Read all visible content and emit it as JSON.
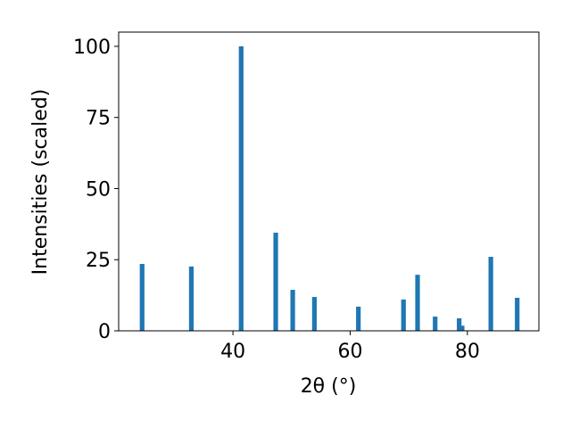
{
  "chart_data": {
    "type": "bar",
    "x": [
      24.5,
      32.9,
      41.4,
      47.3,
      50.2,
      53.9,
      61.4,
      69.1,
      71.5,
      74.5,
      78.6,
      79.1,
      84.0,
      88.5
    ],
    "values": [
      23.5,
      22.6,
      100,
      34.5,
      14.4,
      11.9,
      8.5,
      11.0,
      19.7,
      5.0,
      4.4,
      1.8,
      26.0,
      11.6
    ],
    "color": "#1f77b4",
    "xlabel": "2θ (°)",
    "ylabel": "Intensities (scaled)",
    "xlim": [
      20.5,
      92.2
    ],
    "ylim": [
      0,
      105
    ],
    "xticks": [
      40,
      60,
      80
    ],
    "yticks": [
      0,
      25,
      50,
      75,
      100
    ]
  }
}
